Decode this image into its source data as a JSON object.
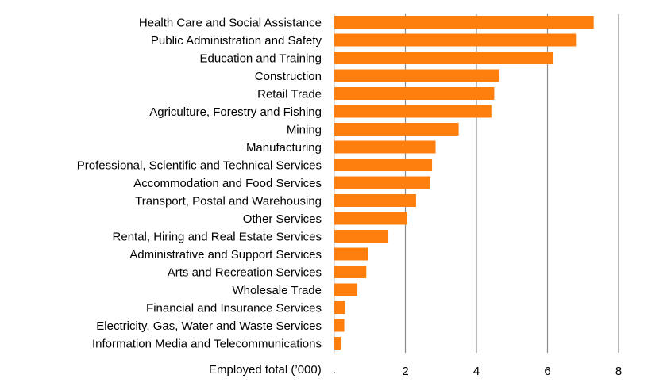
{
  "chart_data": {
    "type": "bar",
    "orientation": "horizontal",
    "categories": [
      "Health Care and Social Assistance",
      "Public Administration and Safety",
      "Education and Training",
      "Construction",
      "Retail Trade",
      "Agriculture, Forestry and Fishing",
      "Mining",
      "Manufacturing",
      "Professional, Scientific and Technical Services",
      "Accommodation and Food Services",
      "Transport, Postal and Warehousing",
      "Other Services",
      "Rental, Hiring and Real Estate Services",
      "Administrative and Support Services",
      "Arts and Recreation Services",
      "Wholesale Trade",
      "Financial and Insurance Services",
      "Electricity, Gas, Water and Waste Services",
      "Information Media and Telecommunications"
    ],
    "values": [
      7.3,
      6.8,
      6.15,
      4.65,
      4.5,
      4.42,
      3.5,
      2.85,
      2.75,
      2.7,
      2.3,
      2.05,
      1.5,
      0.95,
      0.9,
      0.65,
      0.3,
      0.28,
      0.18
    ],
    "xlabel": "Employed total (’000)",
    "xlim": [
      0,
      8
    ],
    "xticks": [
      "2",
      "4",
      "6",
      "8"
    ],
    "xtick_values": [
      2,
      4,
      6,
      8
    ],
    "origin_label": ".",
    "grid": "vertical",
    "legend": "none",
    "bar_color": "#FF7F0E"
  }
}
